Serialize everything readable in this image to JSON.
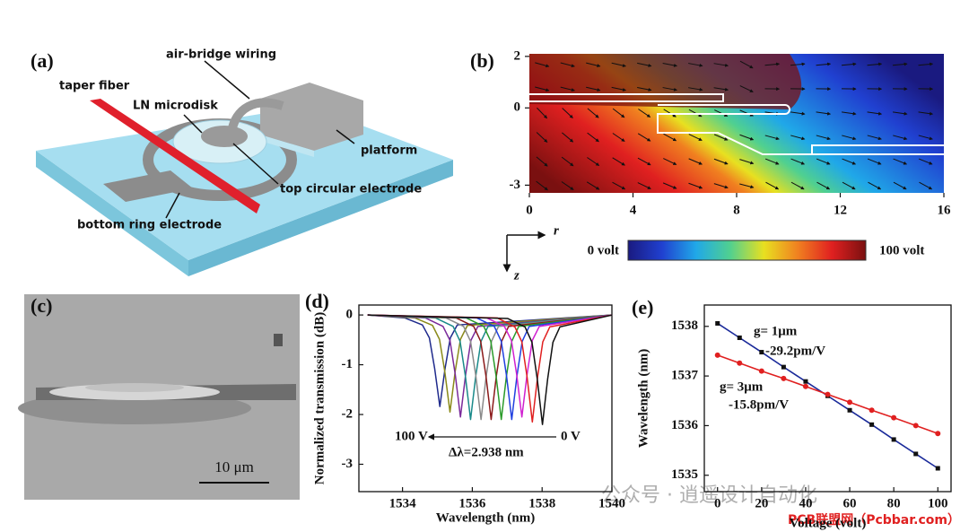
{
  "panels": {
    "a": {
      "label": "(a)",
      "labels": [
        "air-bridge wiring",
        "taper fiber",
        "LN microdisk",
        "platform",
        "top circular electrode",
        "bottom ring electrode"
      ]
    },
    "c": {
      "label": "(c)",
      "scale_bar": "10 μm"
    }
  },
  "watermark": [
    "公众号 · 逍遥设计自动化",
    "PCB联盟网（Pcbbar.com）"
  ],
  "chart_data": [
    {
      "type": "field",
      "panel_label": "(b)",
      "xlim": [
        0,
        16
      ],
      "xticks": [
        0,
        4,
        8,
        12,
        16
      ],
      "ylim": [
        -3.3,
        2.1
      ],
      "yticks": [
        2,
        0,
        -3
      ],
      "xlabel": "r",
      "ylabel": "z",
      "colorbar_labels": [
        "0 volt",
        "100 volt"
      ],
      "colormap": [
        "#1a1a80",
        "#2040d0",
        "#20a8e8",
        "#50d090",
        "#e8e020",
        "#f08020",
        "#e02020",
        "#7a1010"
      ]
    },
    {
      "type": "line",
      "panel_label": "(d)",
      "xlabel": "Wavelength (nm)",
      "ylabel": "Normalized transmission (dB)",
      "xlim": [
        1532.75,
        1540
      ],
      "xticks": [
        1534,
        1536,
        1538,
        1540
      ],
      "ylim": [
        -3.55,
        0.2
      ],
      "yticks": [
        0,
        -1,
        -2,
        -3
      ],
      "annotations": [
        "100 V",
        "0 V",
        "Δλ=2.938 nm"
      ],
      "series": [
        {
          "color": "#1f2a8c",
          "x": [
            1533,
            1534.07,
            1534.57,
            1534.77,
            1534.92,
            1535.07,
            1535.22,
            1535.37,
            1535.57,
            1540
          ],
          "values": [
            0,
            -0.06,
            -0.2,
            -0.46,
            -1.07,
            -1.84,
            -1.07,
            -0.46,
            -0.2,
            0
          ]
        },
        {
          "color": "#8a8a1a",
          "x": [
            1533,
            1534.36,
            1534.86,
            1535.06,
            1535.21,
            1535.36,
            1535.51,
            1535.66,
            1535.86,
            1540
          ],
          "values": [
            0,
            -0.06,
            -0.21,
            -0.49,
            -1.13,
            -1.95,
            -1.13,
            -0.49,
            -0.21,
            0
          ]
        },
        {
          "color": "#7a2a9a",
          "x": [
            1533,
            1534.66,
            1535.16,
            1535.36,
            1535.51,
            1535.66,
            1535.81,
            1535.96,
            1536.16,
            1540
          ],
          "values": [
            0,
            -0.06,
            -0.23,
            -0.51,
            -1.19,
            -2.05,
            -1.19,
            -0.51,
            -0.23,
            0
          ]
        },
        {
          "color": "#1a8a8a",
          "x": [
            1533,
            1534.95,
            1535.45,
            1535.65,
            1535.8,
            1535.95,
            1536.1,
            1536.25,
            1536.45,
            1540
          ],
          "values": [
            0,
            -0.06,
            -0.23,
            -0.53,
            -1.22,
            -2.1,
            -1.22,
            -0.53,
            -0.23,
            0
          ]
        },
        {
          "color": "#8a8a8a",
          "x": [
            1533,
            1535.25,
            1535.75,
            1535.95,
            1536.1,
            1536.25,
            1536.4,
            1536.55,
            1536.75,
            1540
          ],
          "values": [
            0,
            -0.06,
            -0.23,
            -0.53,
            -1.22,
            -2.1,
            -1.22,
            -0.53,
            -0.23,
            0
          ]
        },
        {
          "color": "#8a1a1a",
          "x": [
            1533,
            1535.54,
            1536.04,
            1536.24,
            1536.39,
            1536.54,
            1536.69,
            1536.84,
            1537.04,
            1540
          ],
          "values": [
            0,
            -0.06,
            -0.23,
            -0.53,
            -1.22,
            -2.1,
            -1.22,
            -0.53,
            -0.23,
            0
          ]
        },
        {
          "color": "#2a9a2a",
          "x": [
            1533,
            1535.83,
            1536.33,
            1536.53,
            1536.68,
            1536.83,
            1536.98,
            1537.13,
            1537.33,
            1540
          ],
          "values": [
            0,
            -0.06,
            -0.23,
            -0.53,
            -1.22,
            -2.1,
            -1.22,
            -0.53,
            -0.23,
            0
          ]
        },
        {
          "color": "#2040e0",
          "x": [
            1533,
            1536.13,
            1536.63,
            1536.83,
            1536.98,
            1537.13,
            1537.28,
            1537.43,
            1537.63,
            1540
          ],
          "values": [
            0,
            -0.06,
            -0.23,
            -0.53,
            -1.22,
            -2.1,
            -1.22,
            -0.53,
            -0.23,
            0
          ]
        },
        {
          "color": "#d020d0",
          "x": [
            1533,
            1536.42,
            1536.92,
            1537.12,
            1537.27,
            1537.42,
            1537.57,
            1537.72,
            1537.92,
            1540
          ],
          "values": [
            0,
            -0.06,
            -0.23,
            -0.51,
            -1.19,
            -2.05,
            -1.19,
            -0.51,
            -0.23,
            0
          ]
        },
        {
          "color": "#e02020",
          "x": [
            1533,
            1536.72,
            1537.22,
            1537.42,
            1537.57,
            1537.72,
            1537.87,
            1538.02,
            1538.22,
            1540
          ],
          "values": [
            0,
            -0.06,
            -0.24,
            -0.54,
            -1.25,
            -2.15,
            -1.25,
            -0.54,
            -0.24,
            0
          ]
        },
        {
          "color": "#111111",
          "x": [
            1533,
            1537.01,
            1537.51,
            1537.71,
            1537.86,
            1538.01,
            1538.16,
            1538.31,
            1538.51,
            1540
          ],
          "values": [
            0,
            -0.07,
            -0.24,
            -0.55,
            -1.28,
            -2.2,
            -1.28,
            -0.55,
            -0.24,
            0
          ]
        }
      ]
    },
    {
      "type": "scatter",
      "panel_label": "(e)",
      "xlabel": "Voltage (volt)",
      "ylabel": "Wavelength (nm)",
      "xlim": [
        -6,
        106
      ],
      "xticks": [
        0,
        20,
        40,
        60,
        80,
        100
      ],
      "ylim": [
        1534.67,
        1538.43
      ],
      "yticks": [
        1535,
        1536,
        1537,
        1538
      ],
      "x": [
        0,
        10,
        20,
        30,
        40,
        50,
        60,
        70,
        80,
        90,
        100
      ],
      "annotations": [
        "g= 1μm",
        "-29.2pm/V",
        "g= 3μm",
        "-15.8pm/V"
      ],
      "series": [
        {
          "color": "#1a2a9a",
          "marker_color": "#111111",
          "values": [
            1538.06,
            1537.77,
            1537.48,
            1537.18,
            1536.89,
            1536.6,
            1536.31,
            1536.02,
            1535.72,
            1535.43,
            1535.14
          ]
        },
        {
          "color": "#e02020",
          "marker_color": "#e02020",
          "values": [
            1537.42,
            1537.26,
            1537.1,
            1536.95,
            1536.79,
            1536.63,
            1536.47,
            1536.31,
            1536.16,
            1536.0,
            1535.84
          ]
        }
      ]
    }
  ]
}
